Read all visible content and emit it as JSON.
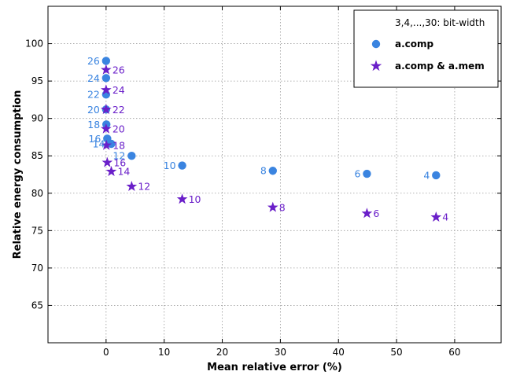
{
  "chart_data": {
    "type": "scatter",
    "xlabel": "Mean relative error (%)",
    "ylabel": "Relative energy consumption",
    "xlim": [
      -10,
      68
    ],
    "ylim": [
      60,
      105
    ],
    "xticks": [
      0,
      10,
      20,
      30,
      40,
      50,
      60
    ],
    "yticks": [
      65,
      70,
      75,
      80,
      85,
      90,
      95,
      100
    ],
    "grid": true,
    "legend_position": "top-right",
    "legend_header": "3,4,...,30: bit-width",
    "series": [
      {
        "name": "a.comp",
        "marker": "circle",
        "color": "#3a84e0",
        "points": [
          {
            "label": "4",
            "x": 56.8,
            "y": 82.4
          },
          {
            "label": "6",
            "x": 44.9,
            "y": 82.6
          },
          {
            "label": "8",
            "x": 28.7,
            "y": 83.0
          },
          {
            "label": "10",
            "x": 13.1,
            "y": 83.7
          },
          {
            "label": "12",
            "x": 4.4,
            "y": 85.0
          },
          {
            "label": "14",
            "x": 0.9,
            "y": 86.6
          },
          {
            "label": "16",
            "x": 0.2,
            "y": 87.3
          },
          {
            "label": "18",
            "x": 0.05,
            "y": 89.2
          },
          {
            "label": "20",
            "x": 0.0,
            "y": 91.2
          },
          {
            "label": "22",
            "x": 0.0,
            "y": 93.2
          },
          {
            "label": "24",
            "x": 0.0,
            "y": 95.4
          },
          {
            "label": "26",
            "x": 0.0,
            "y": 97.7
          }
        ]
      },
      {
        "name": "a.comp & a.mem",
        "marker": "star",
        "color": "#6a1fc9",
        "points": [
          {
            "label": "4",
            "x": 56.8,
            "y": 76.8
          },
          {
            "label": "6",
            "x": 44.9,
            "y": 77.3
          },
          {
            "label": "8",
            "x": 28.7,
            "y": 78.1
          },
          {
            "label": "10",
            "x": 13.1,
            "y": 79.2
          },
          {
            "label": "12",
            "x": 4.4,
            "y": 80.9
          },
          {
            "label": "14",
            "x": 0.9,
            "y": 82.9
          },
          {
            "label": "16",
            "x": 0.2,
            "y": 84.1
          },
          {
            "label": "18",
            "x": 0.05,
            "y": 86.4
          },
          {
            "label": "20",
            "x": 0.0,
            "y": 88.6
          },
          {
            "label": "22",
            "x": 0.0,
            "y": 91.2
          },
          {
            "label": "24",
            "x": 0.0,
            "y": 93.8
          },
          {
            "label": "26",
            "x": 0.0,
            "y": 96.5
          }
        ]
      }
    ]
  }
}
